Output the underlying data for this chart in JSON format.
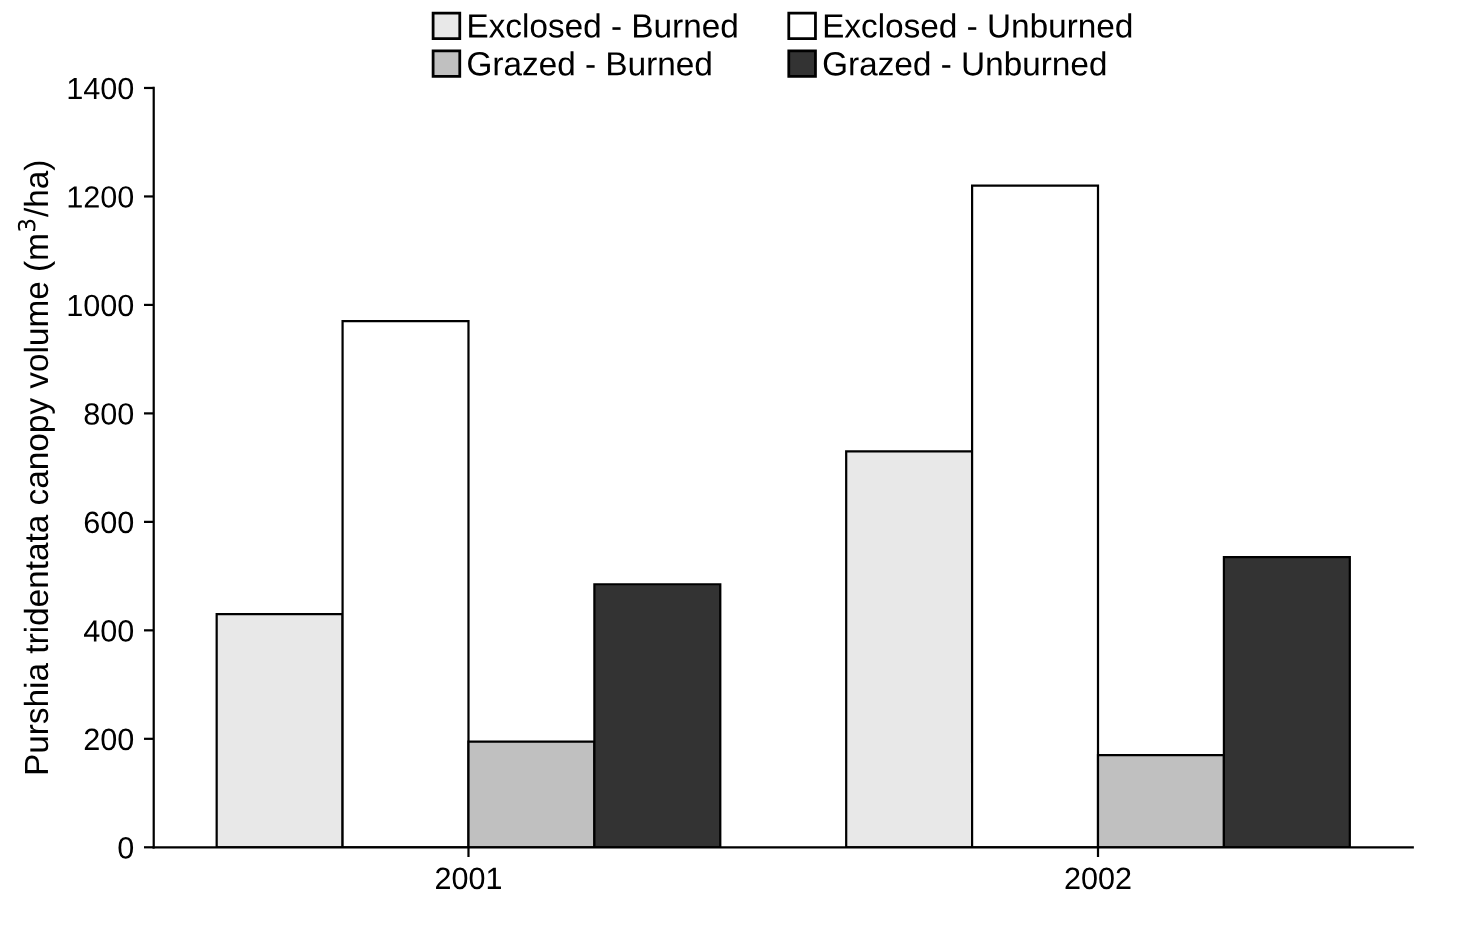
{
  "chart_data": {
    "type": "bar",
    "ylabel": "Purshia tridentata canopy volume (m$^{3}$/ha)",
    "categories": [
      "2001",
      "2002"
    ],
    "series": [
      {
        "name": "Exclosed - Burned",
        "color": "#e8e8e8",
        "values": [
          430,
          730
        ]
      },
      {
        "name": "Exclosed - Unburned",
        "color": "#ffffff",
        "values": [
          970,
          1220
        ]
      },
      {
        "name": "Grazed - Burned",
        "color": "#c0c0c0",
        "values": [
          195,
          170
        ]
      },
      {
        "name": "Grazed - Unburned",
        "color": "#333333",
        "values": [
          485,
          535
        ]
      }
    ],
    "ylim": [
      0,
      1400
    ],
    "yticks": [
      0,
      200,
      400,
      600,
      800,
      1000,
      1200,
      1400
    ],
    "grid": false,
    "legend": "top"
  }
}
